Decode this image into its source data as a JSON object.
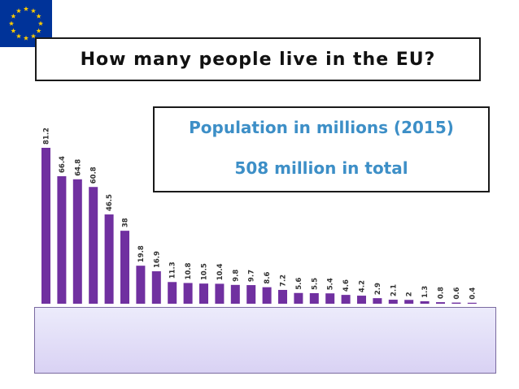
{
  "slide": {
    "title": "How many people live in the EU?",
    "subtitle_line1": "Population in millions (2015)",
    "subtitle_line2": "508 million in total"
  },
  "colors": {
    "bar": "#7030a0",
    "subtitle_text": "#3d8fc7",
    "flag_blue": "#003399",
    "flag_star": "#ffcc00"
  },
  "icons": {
    "flag": "eu-flag-icon"
  },
  "chart_data": {
    "type": "bar",
    "title": "Population in millions (2015)",
    "values": [
      81.2,
      66.4,
      64.8,
      60.8,
      46.5,
      38,
      19.8,
      16.9,
      11.3,
      10.8,
      10.5,
      10.4,
      9.8,
      9.7,
      8.6,
      7.2,
      5.6,
      5.5,
      5.4,
      4.6,
      4.2,
      2.9,
      2.1,
      2,
      1.3,
      0.8,
      0.6,
      0.4
    ],
    "ylim": [
      0,
      81.2
    ],
    "grid": false,
    "legend": "none"
  }
}
